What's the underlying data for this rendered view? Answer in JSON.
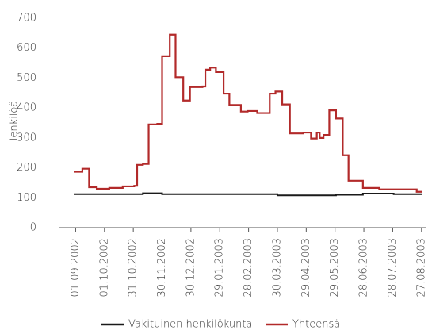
{
  "chart_data": {
    "type": "line",
    "drawstyle": "steps-post",
    "y_label": "Henkilöä",
    "ylim": [
      0,
      700
    ],
    "yticks": [
      0,
      100,
      200,
      300,
      400,
      500,
      600,
      700
    ],
    "xlim": [
      "30.08.2002",
      "28.08.2003"
    ],
    "xticks": [
      "01.09.2002",
      "01.10.2002",
      "31.10.2002",
      "30.11.2002",
      "30.12.2002",
      "29.01.2003",
      "28.02.2003",
      "30.03.2003",
      "29.04.2003",
      "29.05.2003",
      "28.06.2003",
      "28.07.2003",
      "27.08.2003"
    ],
    "series": [
      {
        "name": "Vakituinen henkilökunta",
        "color": "#1a1a1a",
        "x": [
          "30.08.2002",
          "10.11.2002",
          "30.11.2002",
          "30.03.2003",
          "30.05.2003",
          "27.06.2003",
          "29.07.2003",
          "28.08.2003"
        ],
        "values": [
          112,
          115,
          112,
          108,
          110,
          114,
          112,
          112
        ]
      },
      {
        "name": "Yhteensä",
        "color": "#b22a2a",
        "x": [
          "30.08.2002",
          "08.09.2002",
          "15.09.2002",
          "23.09.2002",
          "06.10.2002",
          "20.10.2002",
          "01.11.2002",
          "04.11.2002",
          "10.11.2002",
          "16.11.2002",
          "25.11.2002",
          "30.11.2002",
          "08.12.2002",
          "14.12.2002",
          "22.12.2002",
          "29.12.2002",
          "11.01.2003",
          "14.01.2003",
          "19.01.2003",
          "25.01.2003",
          "02.02.2003",
          "08.02.2003",
          "20.02.2003",
          "27.02.2003",
          "09.03.2003",
          "22.03.2003",
          "28.03.2003",
          "04.04.2003",
          "12.04.2003",
          "26.04.2003",
          "04.05.2003",
          "10.05.2003",
          "13.05.2003",
          "17.05.2003",
          "23.05.2003",
          "30.05.2003",
          "06.06.2003",
          "12.06.2003",
          "27.06.2003",
          "14.07.2003",
          "22.08.2003",
          "28.08.2003"
        ],
        "values": [
          187,
          197,
          135,
          130,
          133,
          138,
          140,
          210,
          213,
          345,
          347,
          573,
          645,
          503,
          425,
          470,
          472,
          528,
          535,
          520,
          448,
          410,
          388,
          390,
          383,
          448,
          455,
          412,
          315,
          318,
          298,
          318,
          300,
          310,
          392,
          365,
          242,
          157,
          133,
          128,
          120,
          120
        ]
      }
    ]
  }
}
